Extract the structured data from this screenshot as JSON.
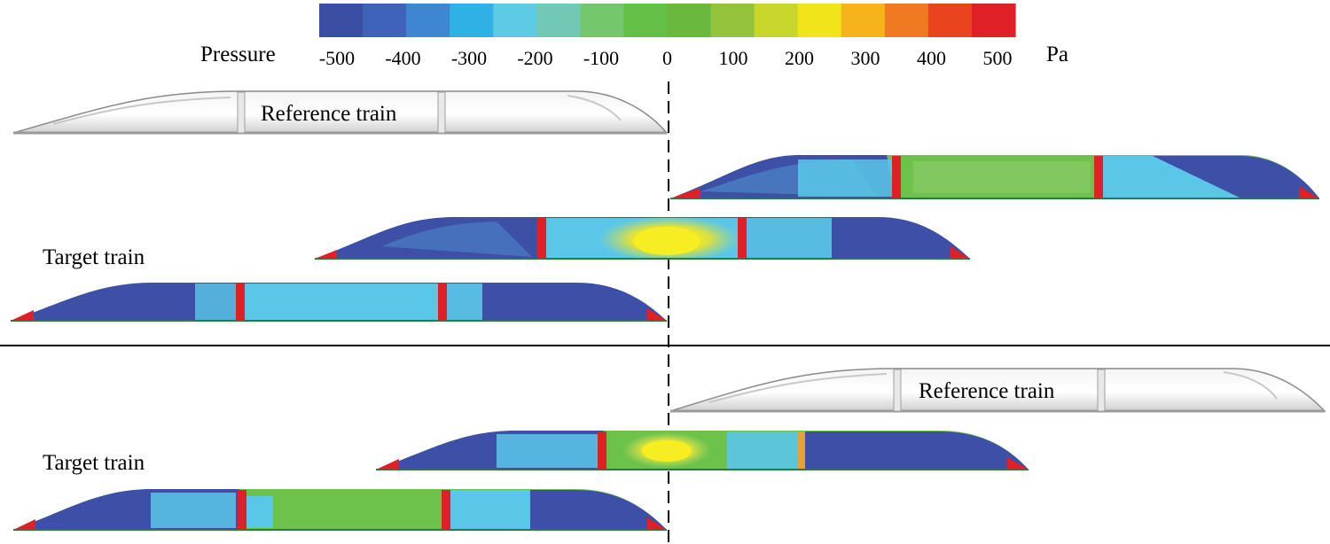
{
  "colorbar": {
    "label": "Pressure",
    "unit": "Pa",
    "ticks": [
      "-500",
      "-400",
      "-300",
      "-200",
      "-100",
      "0",
      "100",
      "200",
      "300",
      "400",
      "500"
    ],
    "colors": [
      "#3a4fa3",
      "#3f63b8",
      "#3f86d0",
      "#2fb1e6",
      "#5dcbe6",
      "#72c9b3",
      "#74c76d",
      "#64bf46",
      "#6ab93e",
      "#95c23b",
      "#c8d62b",
      "#f1e51a",
      "#f7b31b",
      "#ef7a22",
      "#e8451f",
      "#e02027"
    ]
  },
  "labels": {
    "reference_top": "Reference train",
    "reference_bottom": "Reference train",
    "target_top": "Target train",
    "target_bottom": "Target train"
  },
  "pressure_colors": {
    "deep_blue": "#3d4fa6",
    "blue": "#3f74c2",
    "light_blue": "#5bc7e8",
    "green": "#6cc24a",
    "yellow": "#f1e51a",
    "red": "#e02027"
  }
}
